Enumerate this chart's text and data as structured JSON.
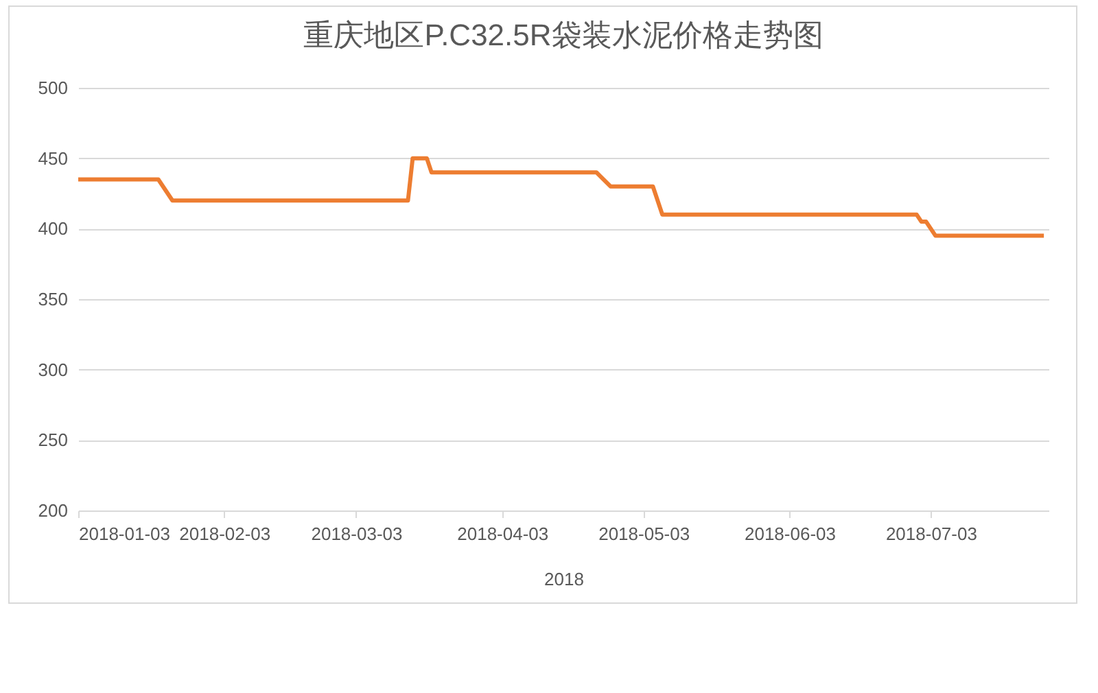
{
  "chart_data": {
    "type": "line",
    "title": "重庆地区P.C32.5R袋装水泥价格走势图",
    "xlabel": "2018",
    "x": [
      "2018-01-03",
      "2018-01-20",
      "2018-01-23",
      "2018-03-14",
      "2018-03-15",
      "2018-03-18",
      "2018-03-19",
      "2018-04-23",
      "2018-04-26",
      "2018-05-05",
      "2018-05-07",
      "2018-06-30",
      "2018-07-01",
      "2018-07-02",
      "2018-07-04",
      "2018-07-27"
    ],
    "series": [
      {
        "color": "#ed7d31",
        "values": [
          435,
          435,
          420,
          420,
          450,
          450,
          440,
          440,
          430,
          430,
          410,
          410,
          405,
          405,
          395,
          395
        ]
      }
    ],
    "xlim": [
      "2018-01-03",
      "2018-07-28"
    ],
    "xticks": [
      "2018-01-03",
      "2018-02-03",
      "2018-03-03",
      "2018-04-03",
      "2018-05-03",
      "2018-06-03",
      "2018-07-03"
    ],
    "ylim": [
      200,
      500
    ],
    "yticks": [
      200,
      250,
      300,
      350,
      400,
      450,
      500
    ],
    "grid": "y",
    "legend": false
  }
}
